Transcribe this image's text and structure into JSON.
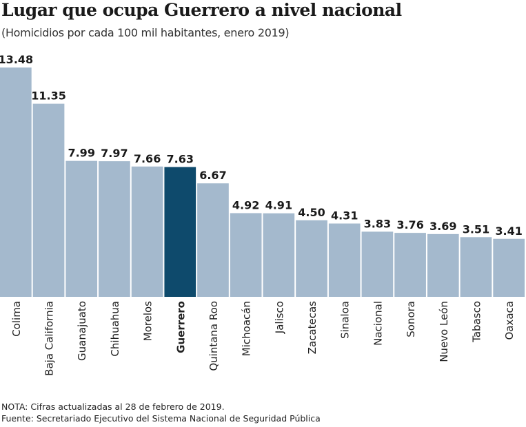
{
  "chart_data": {
    "type": "bar",
    "title": "Lugar que ocupa Guerrero a nivel nacional",
    "subtitle": "(Homicidios por cada 100 mil habitantes, enero 2019)",
    "categories": [
      "Colima",
      "Baja California",
      "Guanajuato",
      "Chihuahua",
      "Morelos",
      "Guerrero",
      "Quintana Roo",
      "Michoacán",
      "Jalisco",
      "Zacatecas",
      "Sinaloa",
      "Nacional",
      "Sonora",
      "Nuevo León",
      "Tabasco",
      "Oaxaca"
    ],
    "values": [
      13.48,
      11.35,
      7.99,
      7.97,
      7.66,
      7.63,
      6.67,
      4.92,
      4.91,
      4.5,
      4.31,
      3.83,
      3.76,
      3.69,
      3.51,
      3.41
    ],
    "value_labels": [
      "13.48",
      "11.35",
      "7.99",
      "7.97",
      "7.66",
      "7.63",
      "6.67",
      "4.92",
      "4.91",
      "4.50",
      "4.31",
      "3.83",
      "3.76",
      "3.69",
      "3.51",
      "3.41"
    ],
    "highlight": "Guerrero",
    "ylim": [
      0,
      13.48
    ],
    "grid": false,
    "colors": {
      "bar": "#a4b9cd",
      "highlight": "#0e4a6c",
      "text": "#1a1a1a"
    }
  },
  "notes": {
    "nota": "NOTA: Cifras actualizadas al 28 de febrero de 2019.",
    "fuente": "Fuente: Secretariado Ejecutivo del Sistema Nacional de Seguridad Pública"
  }
}
